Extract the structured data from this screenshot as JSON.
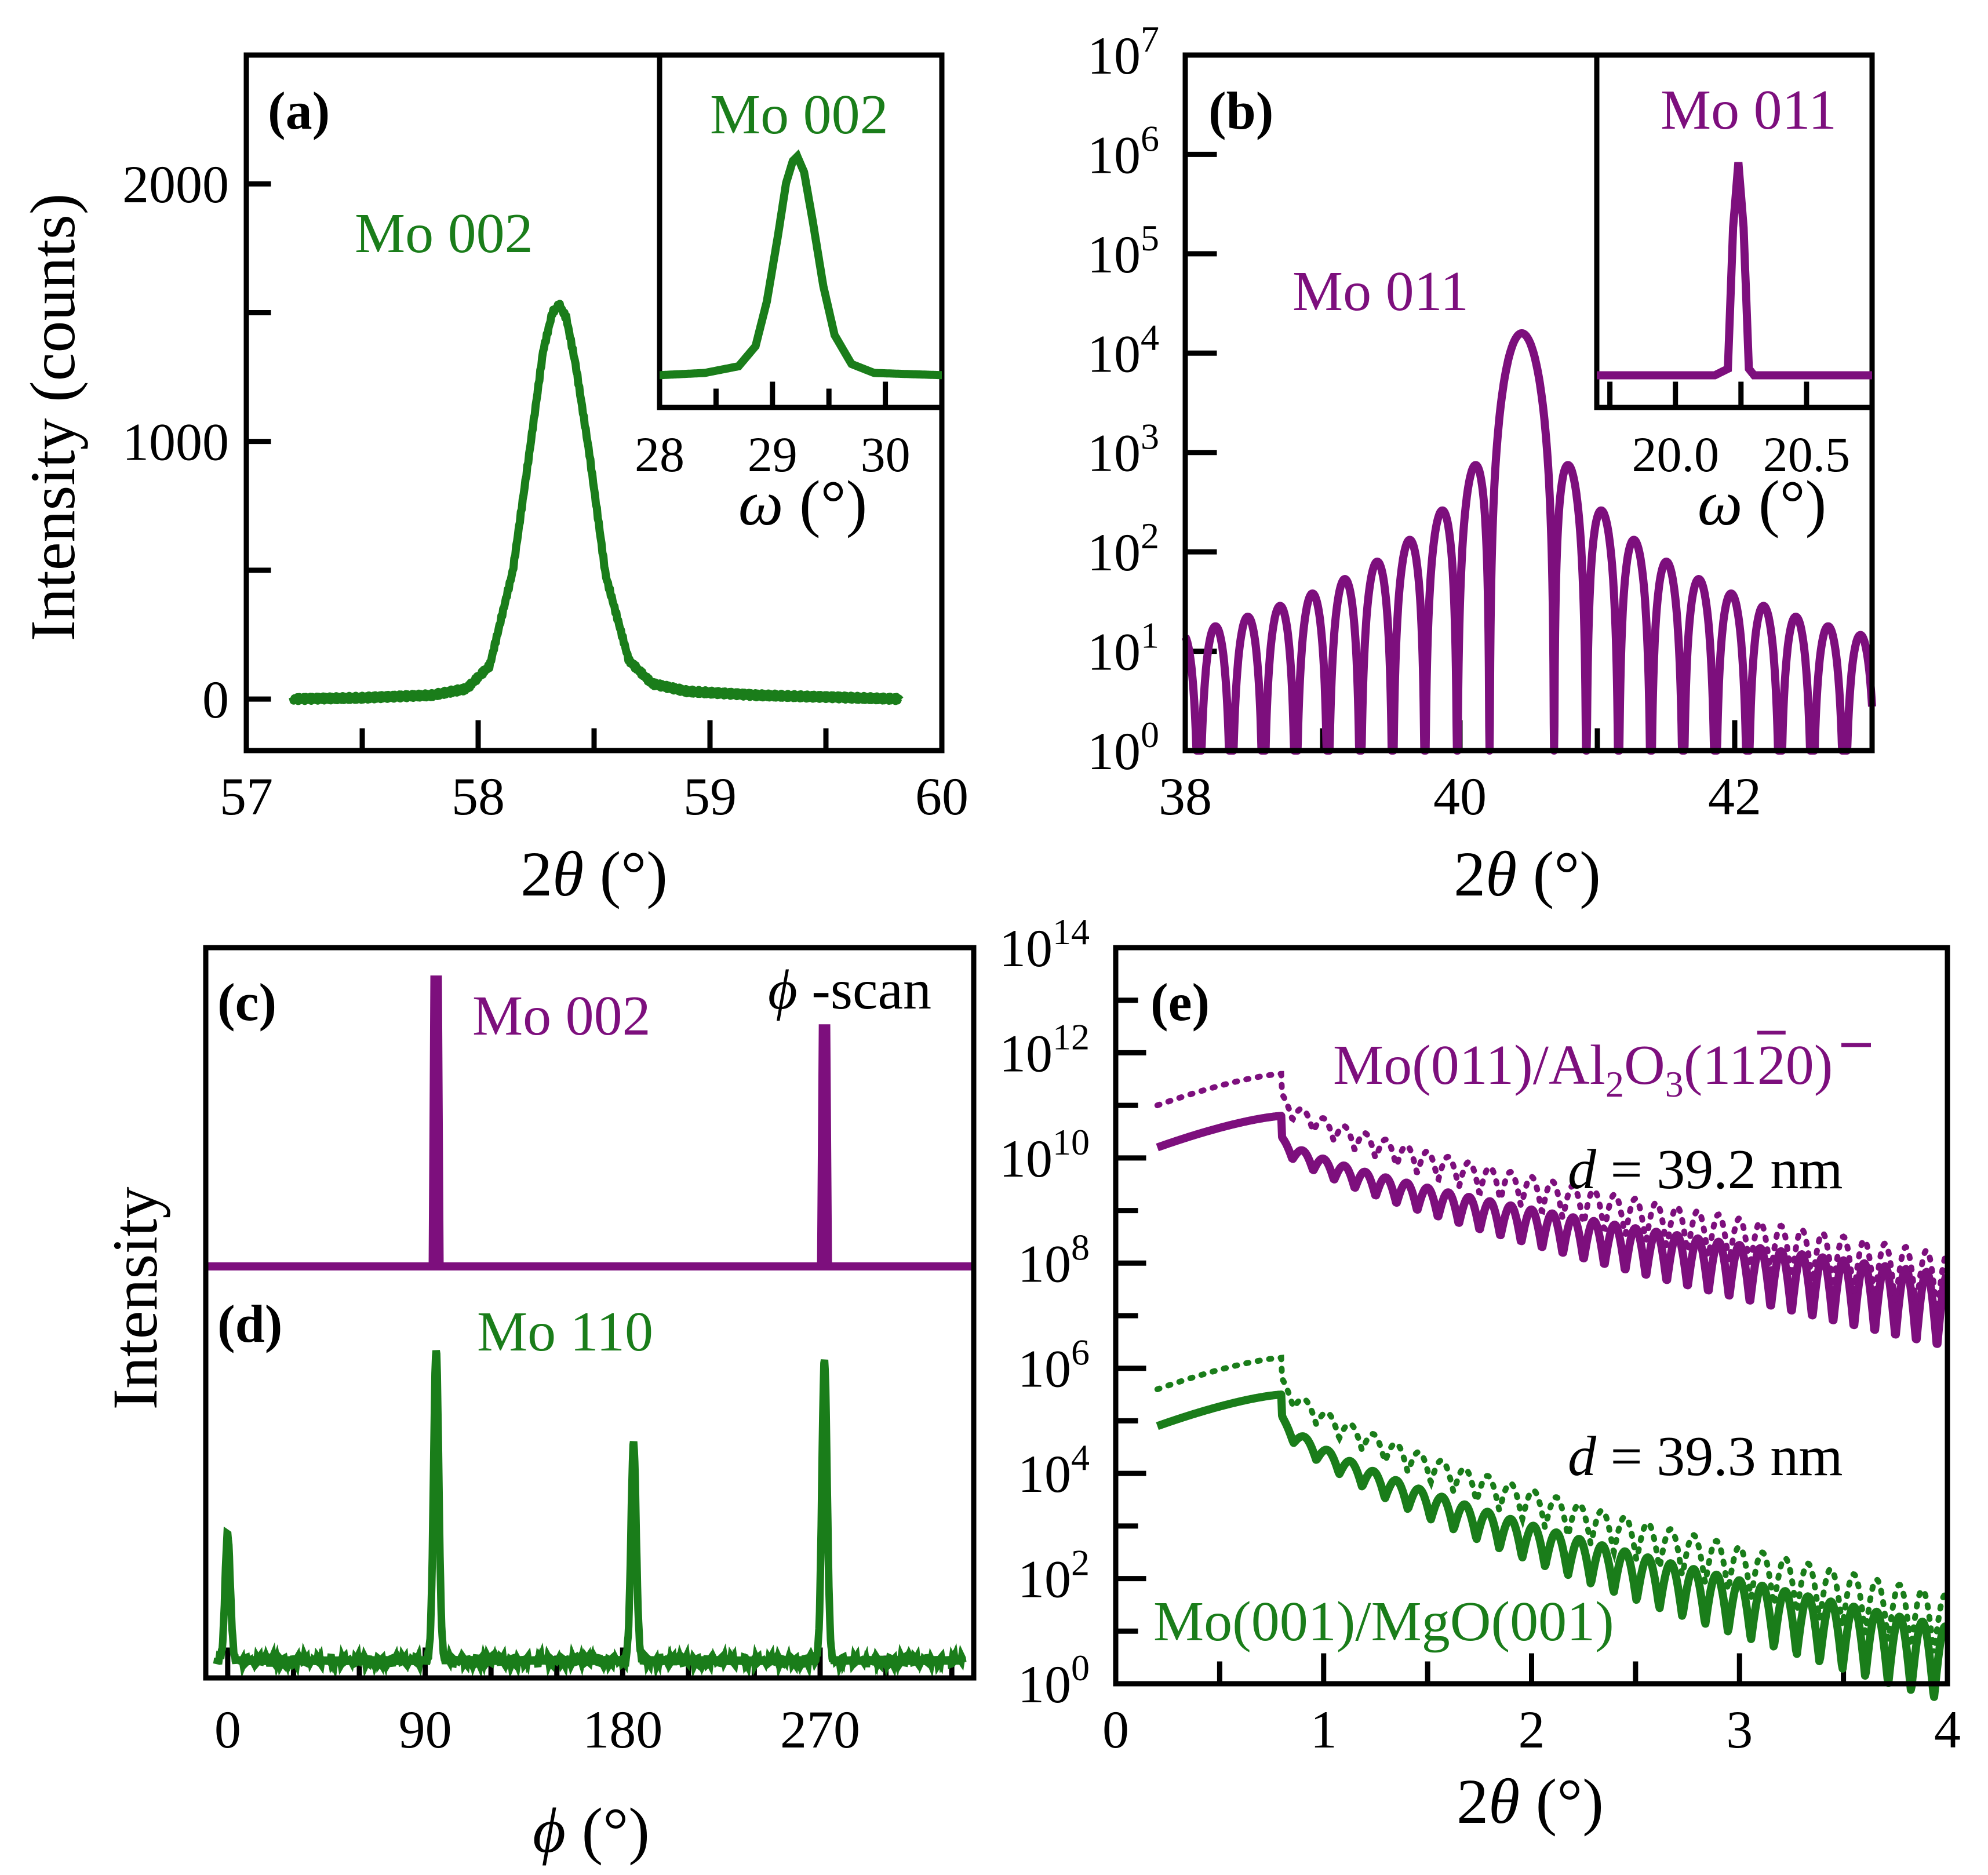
{
  "colors": {
    "purple": "#7d0f7d",
    "green": "#1a7d1a",
    "axis": "#000000"
  },
  "chart_data": [
    {
      "panel": "a",
      "type": "line",
      "panel_label": "(a)",
      "peak_label": "Mo 002",
      "xlabel_prefix": "2",
      "xlabel_symbol": "θ",
      "xlabel_unit": " (°)",
      "ylabel": "Intensity (counts)",
      "xlim": [
        57,
        60
      ],
      "ylim": [
        -200,
        2500
      ],
      "xticks": [
        "57",
        "58",
        "59",
        "60"
      ],
      "yticks": [
        "0",
        "1000",
        "2000"
      ],
      "color": "green",
      "series": [
        {
          "name": "Mo 002 2θ scan",
          "x": [
            57.2,
            57.5,
            57.8,
            57.95,
            58.05,
            58.15,
            58.22,
            58.28,
            58.32,
            58.35,
            58.38,
            58.42,
            58.48,
            58.55,
            58.65,
            58.75,
            58.9,
            59.2,
            59.5,
            59.82
          ],
          "y": [
            0,
            5,
            15,
            40,
            130,
            500,
            950,
            1350,
            1500,
            1530,
            1480,
            1300,
            950,
            480,
            150,
            60,
            30,
            15,
            8,
            0
          ]
        }
      ],
      "inset": {
        "peak_label": "Mo 002",
        "xlabel_symbol": "ω",
        "xlabel_unit": " (°)",
        "xlim": [
          28,
          30.5
        ],
        "xticks": [
          "28",
          "29",
          "30"
        ],
        "series": [
          {
            "name": "Mo 002 rocking curve",
            "x": [
              28,
              28.4,
              28.7,
              28.85,
              28.95,
              29.05,
              29.12,
              29.18,
              29.22,
              29.28,
              29.36,
              29.45,
              29.55,
              29.7,
              29.9,
              30.5
            ],
            "y": [
              0.02,
              0.03,
              0.06,
              0.15,
              0.35,
              0.65,
              0.88,
              0.98,
              1.0,
              0.93,
              0.7,
              0.42,
              0.2,
              0.07,
              0.03,
              0.02
            ]
          }
        ]
      }
    },
    {
      "panel": "b",
      "type": "line",
      "panel_label": "(b)",
      "peak_label": "Mo 011",
      "xlabel_prefix": "2",
      "xlabel_symbol": "θ",
      "xlabel_unit": " (°)",
      "ylabel": "",
      "yscale": "log",
      "xlim": [
        38,
        43
      ],
      "ylim_log10": [
        0,
        7
      ],
      "xticks": [
        "38",
        "40",
        "42"
      ],
      "yticks": [
        "10^0",
        "10^1",
        "10^2",
        "10^3",
        "10^4",
        "10^5",
        "10^6",
        "10^7"
      ],
      "color": "purple",
      "series": [
        {
          "name": "Mo 011 2θ scan with Laue oscillations",
          "peak_center": 40.45,
          "peak_max_log10": 4.2,
          "fringe_period": 0.235,
          "fringe_tail_log10_at_38": 0.6
        }
      ],
      "inset": {
        "peak_label": "Mo 011",
        "xlabel_symbol": "ω",
        "xlabel_unit": " (°)",
        "xlim": [
          19.7,
          20.75
        ],
        "xticks": [
          "20.0",
          "20.5"
        ],
        "series": [
          {
            "name": "Mo 011 rocking curve",
            "x": [
              19.7,
              20.15,
              20.2,
              20.22,
              20.24,
              20.26,
              20.28,
              20.3,
              20.75
            ],
            "y": [
              0.02,
              0.02,
              0.05,
              0.7,
              1.0,
              0.7,
              0.05,
              0.02,
              0.02
            ]
          }
        ]
      }
    },
    {
      "panel": "c-d",
      "type": "line",
      "panel_label_c": "(c)",
      "panel_label_d": "(d)",
      "label_c": "Mo 002",
      "label_d": "Mo 110",
      "scan_label_symbol": "ϕ",
      "scan_label_text": " -scan",
      "ylabel": "Intensity",
      "xlabel_symbol": "ϕ",
      "xlabel_unit": " (°)",
      "xlim": [
        -10,
        340
      ],
      "xticks": [
        "0",
        "90",
        "180",
        "270"
      ],
      "series": [
        {
          "name": "Mo 002 phi-scan",
          "color": "purple",
          "peaks_x": [
            95,
            272
          ],
          "peaks_height": [
            1.0,
            0.83
          ]
        },
        {
          "name": "Mo 110 phi-scan",
          "color": "green",
          "peaks_x": [
            0,
            95,
            185,
            272
          ],
          "peaks_height": [
            0.38,
            0.93,
            0.65,
            0.9
          ]
        }
      ]
    },
    {
      "panel": "e",
      "type": "line",
      "panel_label": "(e)",
      "yscale": "log",
      "xlabel_prefix": "2",
      "xlabel_symbol": "θ",
      "xlabel_unit": " (°)",
      "xlim": [
        0,
        4
      ],
      "ylim_log10": [
        0,
        14
      ],
      "xticks": [
        "0",
        "1",
        "2",
        "3",
        "4"
      ],
      "yticks": [
        "10^0",
        "10^2",
        "10^4",
        "10^6",
        "10^8",
        "10^10",
        "10^12",
        "10^14"
      ],
      "label_top": "Mo(011)/Al₂O₃(11‾20)",
      "label_top_parts": [
        "Mo(011)/Al",
        "2",
        "O",
        "3",
        "(11",
        "2",
        "0)"
      ],
      "thickness_top_symbol": "d",
      "thickness_top_value": " = 39.2 nm",
      "label_bottom": "Mo(001)/MgO(001)",
      "thickness_bottom_symbol": "d",
      "thickness_bottom_value": " = 39.3 nm",
      "series": [
        {
          "name": "Mo(011)/Al2O3 measured",
          "color": "purple",
          "style": "solid",
          "plateau_log10": 10.8,
          "end_log10": 7.2,
          "fringe_period": 0.1
        },
        {
          "name": "Mo(011)/Al2O3 fit",
          "color": "purple",
          "style": "dotted",
          "plateau_log10": 11.6,
          "end_log10": 7.7,
          "fringe_period": 0.1
        },
        {
          "name": "Mo(001)/MgO measured",
          "color": "green",
          "style": "solid",
          "plateau_log10": 5.5,
          "end_log10": 0.5,
          "fringe_period": 0.11
        },
        {
          "name": "Mo(001)/MgO fit",
          "color": "green",
          "style": "dotted",
          "plateau_log10": 6.2,
          "end_log10": 1.2,
          "fringe_period": 0.11
        }
      ]
    }
  ]
}
